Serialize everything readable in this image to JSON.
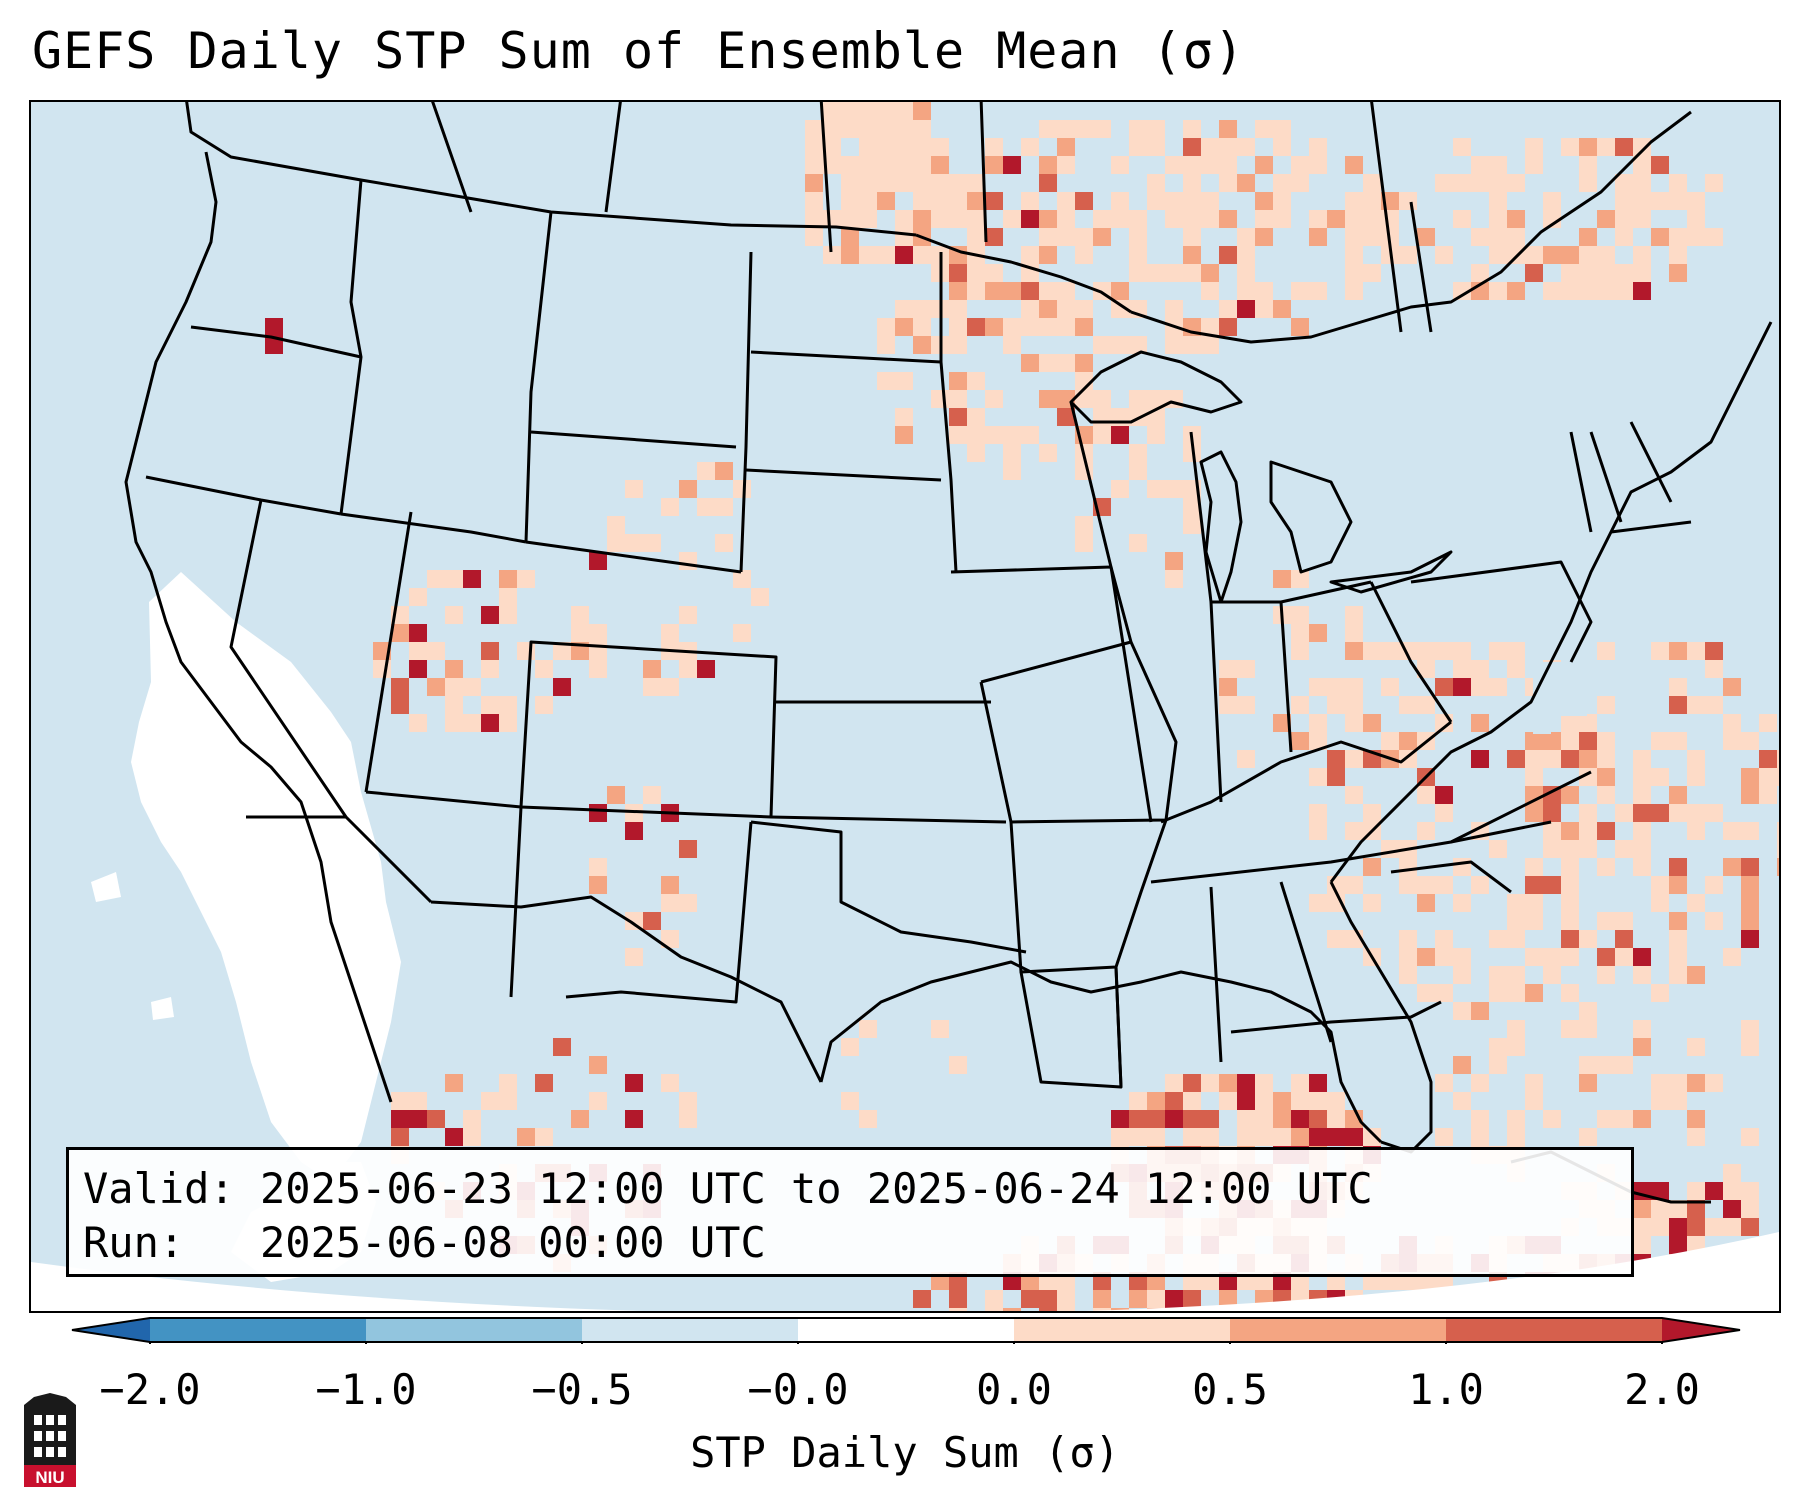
{
  "title": "GEFS Daily STP Sum of Ensemble Mean (σ)",
  "info": {
    "valid_label": "Valid:",
    "valid_value": "2025-06-23 12:00 UTC to 2025-06-24 12:00 UTC",
    "run_label": "Run:",
    "run_value": "2025-06-08 00:00 UTC"
  },
  "colorbar": {
    "label": "STP Daily Sum (σ)",
    "ticks": [
      "−2.0",
      "−1.0",
      "−0.5",
      "−0.0",
      "0.0",
      "0.5",
      "1.0",
      "2.0"
    ],
    "colors": [
      "#2166ac",
      "#4393c3",
      "#92c5de",
      "#d1e5f0",
      "#ffffff",
      "#fddbc7",
      "#f4a582",
      "#d6604d",
      "#b2182b"
    ]
  },
  "logo": {
    "text": "NIU",
    "color": "#c8102e"
  },
  "map": {
    "region": "Continental United States",
    "background_color": "#d1e5f0"
  }
}
